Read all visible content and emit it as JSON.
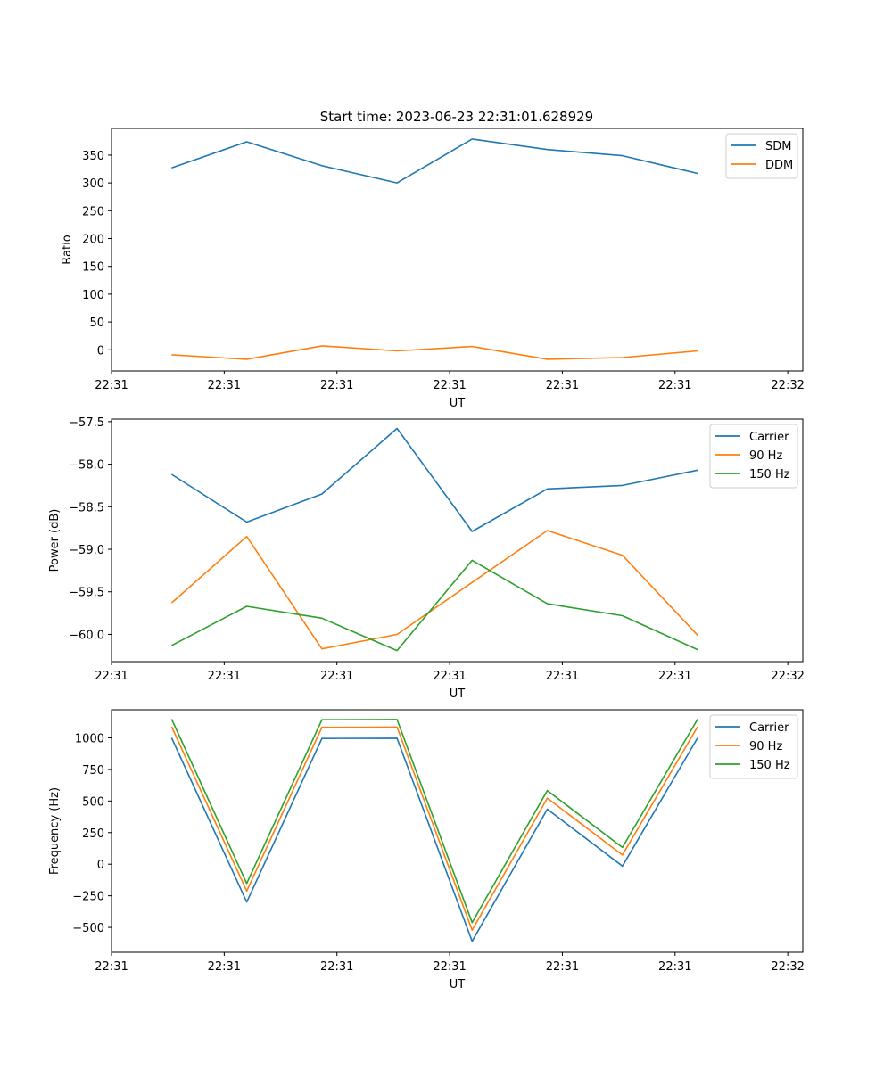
{
  "figure": {
    "title": "Start time: 2023-06-23 22:31:01.628929"
  },
  "colors": {
    "blue": "#1f77b4",
    "orange": "#ff7f0e",
    "green": "#2ca02c"
  },
  "chart_data": [
    {
      "type": "line",
      "id": "ratio",
      "title": "Start time: 2023-06-23 22:31:01.628929",
      "xlabel": "UT",
      "ylabel": "Ratio",
      "x": [
        1,
        2,
        3,
        4,
        5,
        6,
        7,
        8
      ],
      "xlim": [
        0.2,
        9.4
      ],
      "xticks": [
        0.2,
        1.7,
        3.2,
        4.7,
        6.2,
        7.7,
        9.2
      ],
      "xticklabels": [
        "22:31",
        "22:31",
        "22:31",
        "22:31",
        "22:31",
        "22:31",
        "22:32"
      ],
      "ylim": [
        -38,
        398
      ],
      "yticks": [
        0,
        50,
        100,
        150,
        200,
        250,
        300,
        350
      ],
      "yticklabels": [
        "0",
        "50",
        "100",
        "150",
        "200",
        "250",
        "300",
        "350"
      ],
      "legend": "upper right",
      "series": [
        {
          "name": "SDM",
          "color": "#1f77b4",
          "values": [
            327,
            374,
            331,
            300,
            379,
            360,
            349,
            317
          ]
        },
        {
          "name": "DDM",
          "color": "#ff7f0e",
          "values": [
            -9,
            -17,
            7,
            -2,
            6,
            -17,
            -14,
            -2
          ]
        }
      ]
    },
    {
      "type": "line",
      "id": "power",
      "xlabel": "UT",
      "ylabel": "Power (dB)",
      "x": [
        1,
        2,
        3,
        4,
        5,
        6,
        7,
        8
      ],
      "xlim": [
        0.2,
        9.4
      ],
      "xticks": [
        0.2,
        1.7,
        3.2,
        4.7,
        6.2,
        7.7,
        9.2
      ],
      "xticklabels": [
        "22:31",
        "22:31",
        "22:31",
        "22:31",
        "22:31",
        "22:31",
        "22:32"
      ],
      "ylim": [
        -60.32,
        -57.47
      ],
      "yticks": [
        -60.0,
        -59.5,
        -59.0,
        -58.5,
        -58.0,
        -57.5
      ],
      "yticklabels": [
        "−60.0",
        "−59.5",
        "−59.0",
        "−58.5",
        "−58.0",
        "−57.5"
      ],
      "legend": "upper right",
      "series": [
        {
          "name": "Carrier",
          "color": "#1f77b4",
          "values": [
            -58.12,
            -58.68,
            -58.35,
            -57.58,
            -58.79,
            -58.29,
            -58.25,
            -58.07
          ]
        },
        {
          "name": "90 Hz",
          "color": "#ff7f0e",
          "values": [
            -59.63,
            -58.85,
            -60.17,
            -60.0,
            -59.39,
            -58.78,
            -59.07,
            -60.01
          ]
        },
        {
          "name": "150 Hz",
          "color": "#2ca02c",
          "values": [
            -60.13,
            -59.67,
            -59.81,
            -60.19,
            -59.13,
            -59.64,
            -59.78,
            -60.18
          ]
        }
      ]
    },
    {
      "type": "line",
      "id": "frequency",
      "xlabel": "UT",
      "ylabel": "Frequency (Hz)",
      "x": [
        1,
        2,
        3,
        4,
        5,
        6,
        7,
        8
      ],
      "xlim": [
        0.2,
        9.4
      ],
      "xticks": [
        0.2,
        1.7,
        3.2,
        4.7,
        6.2,
        7.7,
        9.2
      ],
      "xticklabels": [
        "22:31",
        "22:31",
        "22:31",
        "22:31",
        "22:31",
        "22:31",
        "22:32"
      ],
      "ylim": [
        -697,
        1222
      ],
      "yticks": [
        -500,
        -250,
        0,
        250,
        500,
        750,
        1000
      ],
      "yticklabels": [
        "−500",
        "−250",
        "0",
        "250",
        "500",
        "750",
        "1000"
      ],
      "legend": "upper right",
      "series": [
        {
          "name": "Carrier",
          "color": "#1f77b4",
          "values": [
            1000,
            -300,
            995,
            997,
            -610,
            435,
            -15,
            1000
          ]
        },
        {
          "name": "90 Hz",
          "color": "#ff7f0e",
          "values": [
            1088,
            -212,
            1083,
            1085,
            -522,
            523,
            73,
            1088
          ]
        },
        {
          "name": "150 Hz",
          "color": "#2ca02c",
          "values": [
            1148,
            -152,
            1143,
            1145,
            -462,
            583,
            133,
            1148
          ]
        }
      ]
    }
  ]
}
